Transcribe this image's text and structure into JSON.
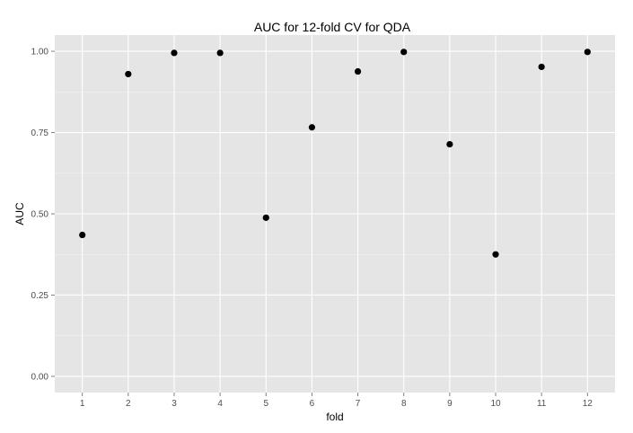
{
  "chart_data": {
    "type": "scatter",
    "title": "AUC for 12-fold CV for QDA",
    "xlabel": "fold",
    "ylabel": "AUC",
    "x": [
      1,
      2,
      3,
      4,
      5,
      6,
      7,
      8,
      9,
      10,
      11,
      12
    ],
    "y": [
      0.435,
      0.93,
      0.995,
      0.995,
      0.488,
      0.766,
      0.938,
      0.998,
      0.714,
      0.375,
      0.952,
      0.998
    ],
    "x_ticks": [
      "1",
      "2",
      "3",
      "4",
      "5",
      "6",
      "7",
      "8",
      "9",
      "10",
      "11",
      "12"
    ],
    "y_ticks": [
      "0.00",
      "0.25",
      "0.50",
      "0.75",
      "1.00"
    ],
    "xlim": [
      0.4,
      12.6
    ],
    "ylim": [
      -0.05,
      1.05
    ],
    "grid": true,
    "colors": {
      "panel_background": "#e5e5e5",
      "grid_major": "#ffffff",
      "grid_minor": "#f2f2f2",
      "point": "#000000",
      "tick_mark": "#7f7f7f"
    }
  }
}
